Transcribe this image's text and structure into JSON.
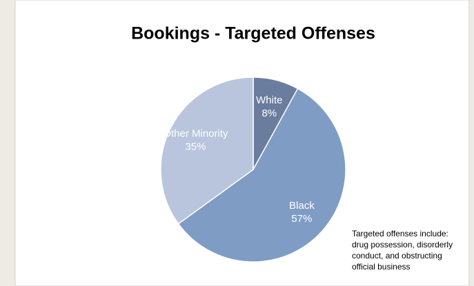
{
  "chart_data": {
    "type": "pie",
    "title": "Bookings - Targeted Offenses",
    "categories": [
      "White",
      "Black",
      "Other Minority"
    ],
    "values": [
      8,
      57,
      35
    ],
    "value_labels": [
      "8%",
      "57%",
      "35%"
    ],
    "colors": [
      "#6a7d9e",
      "#7f9cc5",
      "#b8c5dc"
    ],
    "annotation": [
      "Targeted offenses include:",
      "drug possession, disorderly",
      "conduct, and obstructing",
      "official business"
    ]
  }
}
